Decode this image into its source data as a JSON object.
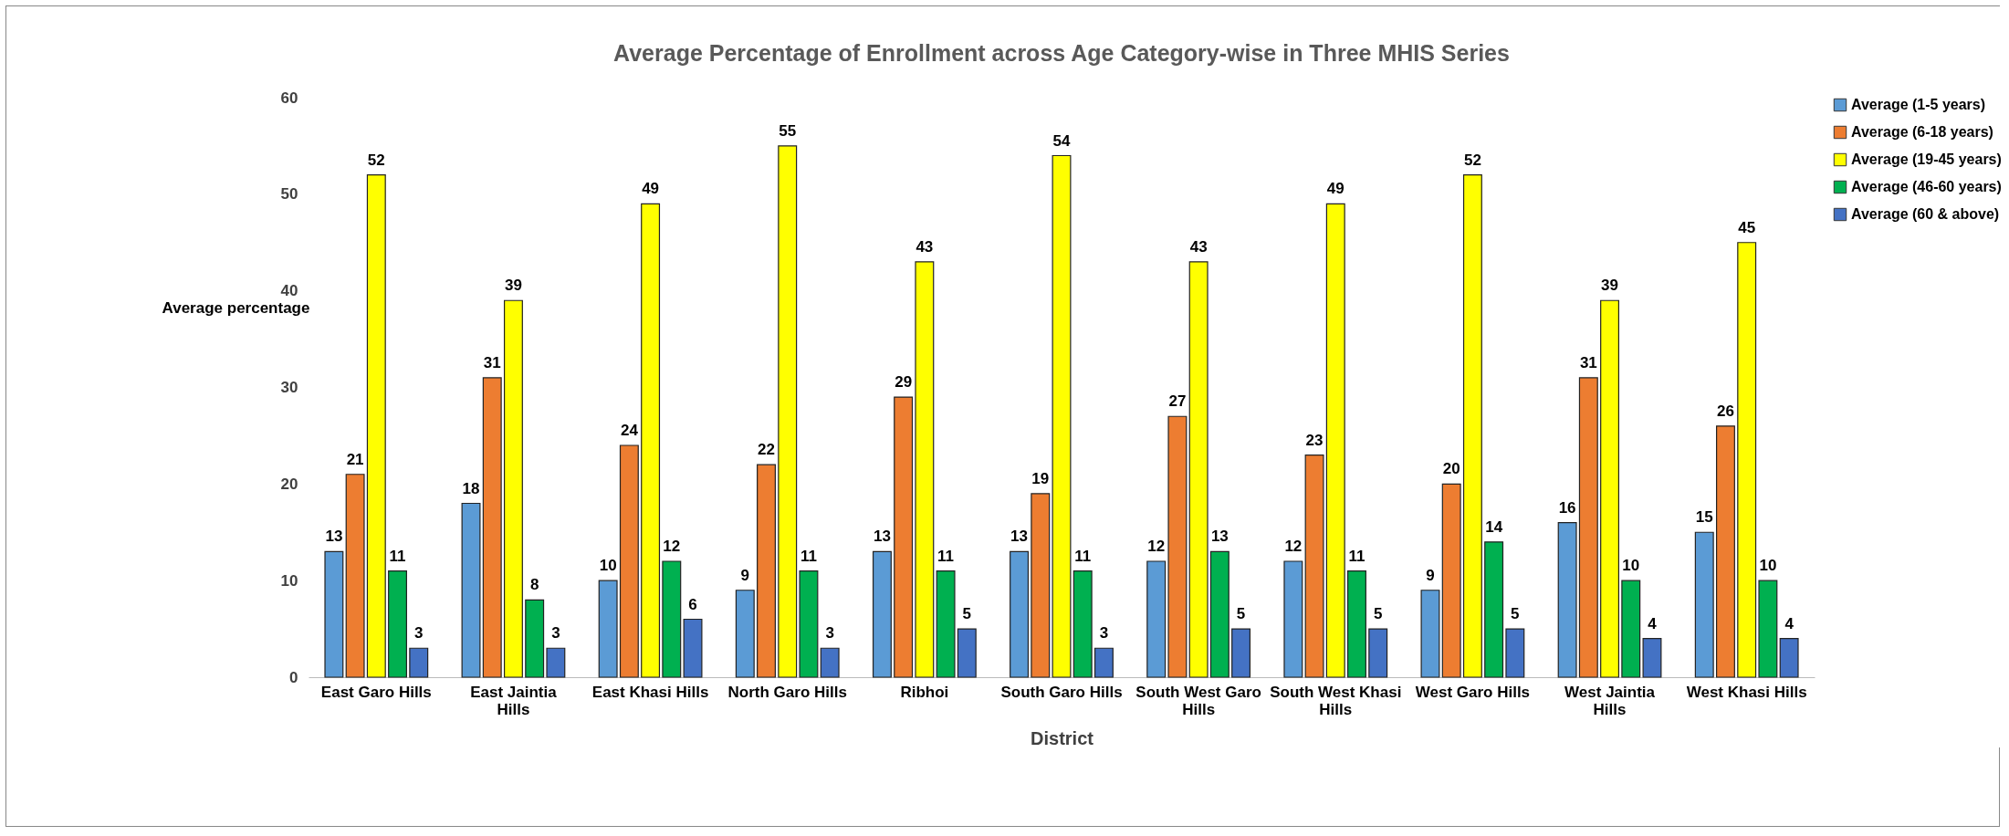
{
  "chart_data": {
    "type": "bar",
    "title": "Average Percentage of Enrollment across Age Category-wise in Three MHIS Series",
    "xlabel": "District",
    "ylabel": "Average percentage",
    "categories": [
      "East Garo Hills",
      "East Jaintia Hills",
      "East Khasi Hills",
      "North Garo Hills",
      "Ribhoi",
      "South Garo Hills",
      "South West Garo Hills",
      "South West Khasi Hills",
      "West Garo Hills",
      "West Jaintia Hills",
      "West Khasi Hills"
    ],
    "series": [
      {
        "name": "Average (1-5 years)",
        "color": "#5b9bd5",
        "values": [
          13,
          18,
          10,
          9,
          13,
          13,
          12,
          12,
          9,
          16,
          15
        ]
      },
      {
        "name": "Average (6-18 years)",
        "color": "#ed7d31",
        "values": [
          21,
          31,
          24,
          22,
          29,
          19,
          27,
          23,
          20,
          31,
          26
        ]
      },
      {
        "name": "Average (19-45 years)",
        "color": "#ffff00",
        "values": [
          52,
          39,
          49,
          55,
          43,
          54,
          43,
          49,
          52,
          39,
          45
        ]
      },
      {
        "name": "Average (46-60 years)",
        "color": "#00b050",
        "values": [
          11,
          8,
          12,
          11,
          11,
          11,
          13,
          11,
          14,
          10,
          10
        ]
      },
      {
        "name": "Average (60 & above)",
        "color": "#4472c4",
        "values": [
          3,
          3,
          6,
          3,
          5,
          3,
          5,
          5,
          5,
          4,
          4
        ]
      }
    ],
    "ylim": [
      0,
      60
    ],
    "yticks": [
      0,
      10,
      20,
      30,
      40,
      50,
      60
    ],
    "data_labels": true,
    "legend": "right"
  }
}
